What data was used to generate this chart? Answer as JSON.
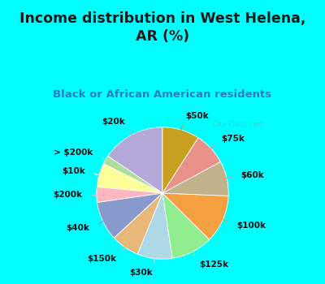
{
  "title": "Income distribution in West Helena,\nAR (%)",
  "subtitle": "Black or African American residents",
  "labels": [
    "$20k",
    "> $200k",
    "$10k",
    "$200k",
    "$40k",
    "$150k",
    "$30k",
    "$125k",
    "$100k",
    "$60k",
    "$75k",
    "$50k"
  ],
  "values": [
    14.5,
    2.0,
    5.5,
    3.5,
    9.0,
    6.5,
    8.0,
    9.5,
    11.0,
    8.0,
    7.5,
    8.5
  ],
  "colors": [
    "#b3a8d8",
    "#aedd9e",
    "#ffff99",
    "#ffb6c1",
    "#8899cc",
    "#e8b87a",
    "#add8e6",
    "#90ee90",
    "#f4a040",
    "#c2b28a",
    "#e8928a",
    "#c8a020"
  ],
  "bg_cyan": "#00ffff",
  "bg_chart": "#d8f0e8",
  "title_color": "#1a1a1a",
  "subtitle_color": "#2980b9",
  "watermark": "City-Data.com",
  "startangle": 90,
  "label_fontsize": 7.5,
  "title_fontsize": 12.5,
  "subtitle_fontsize": 9.5
}
